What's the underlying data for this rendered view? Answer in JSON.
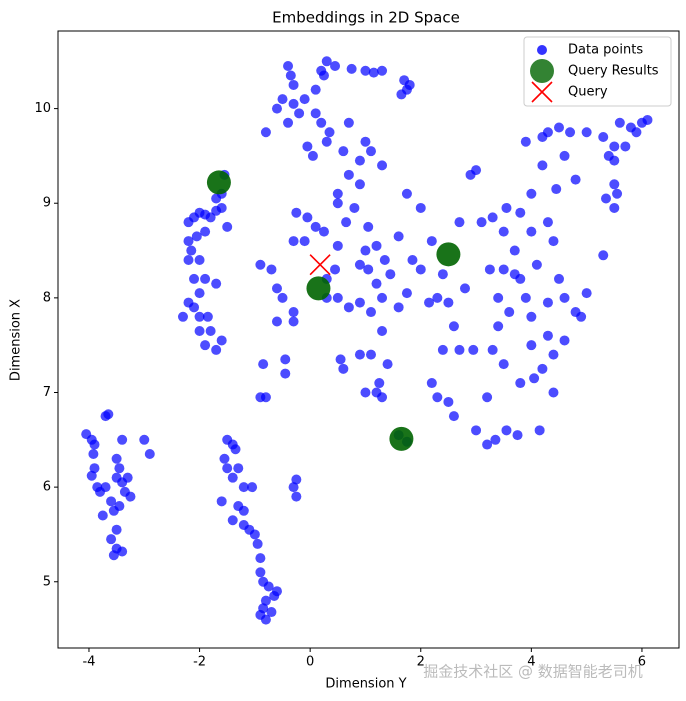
{
  "chart_data": {
    "type": "scatter",
    "title": "Embeddings in 2D Space",
    "xlabel": "Dimension Y",
    "ylabel": "Dimension X",
    "xlim": [
      -4.56,
      6.67
    ],
    "ylim": [
      4.3,
      10.82
    ],
    "xticks": [
      -4,
      -2,
      0,
      2,
      4,
      6
    ],
    "yticks": [
      5,
      6,
      7,
      8,
      9,
      10
    ],
    "legend": "upper right",
    "series": [
      {
        "name": "Data points",
        "color": "#0000ff",
        "marker": "o",
        "x": [
          -4.05,
          -3.95,
          -3.9,
          -3.92,
          -3.9,
          -3.85,
          -3.95,
          -3.7,
          -3.65,
          -3.7,
          -3.5,
          -3.4,
          -3.45,
          -3.4,
          -3.5,
          -3.3,
          -3.25,
          -3.6,
          -3.55,
          -3.75,
          -3.5,
          -3.6,
          -3.5,
          -3.55,
          -3.4,
          -3.0,
          -2.9,
          -3.35,
          -3.8,
          -3.45,
          -2.2,
          -2.1,
          -2.0,
          -1.9,
          -1.8,
          -1.7,
          -1.6,
          -1.7,
          -1.5,
          -2.2,
          -2.15,
          -2.2,
          -2.0,
          -2.1,
          -2.0,
          -1.9,
          -1.7,
          -2.2,
          -2.1,
          -2.3,
          -2.0,
          -1.85,
          -1.8,
          -2.0,
          -1.9,
          -1.7,
          -1.6,
          -1.6,
          -1.55,
          -1.9,
          -2.05,
          -1.5,
          -1.4,
          -1.55,
          -1.5,
          -1.4,
          -1.3,
          -1.35,
          -1.2,
          -1.6,
          -1.3,
          -1.2,
          -1.4,
          -1.2,
          -1.1,
          -1.0,
          -0.95,
          -0.9,
          -0.9,
          -0.85,
          -0.75,
          -0.8,
          -0.85,
          -0.9,
          -0.8,
          -0.7,
          -0.65,
          -0.6,
          -1.05,
          -0.3,
          -0.25,
          -0.25,
          -0.4,
          -0.35,
          -0.3,
          -0.5,
          -0.6,
          -0.3,
          -0.2,
          -0.4,
          -0.1,
          0.1,
          0.2,
          0.3,
          0.45,
          0.25,
          0.1,
          0.2,
          0.35,
          -0.05,
          0.05,
          0.3,
          0.75,
          1.0,
          1.15,
          1.3,
          1.7,
          1.75,
          1.65,
          1.8,
          0.7,
          0.6,
          1.0,
          0.9,
          1.1,
          1.3,
          -0.8,
          -0.9,
          -0.7,
          -0.6,
          -0.5,
          -0.3,
          -0.6,
          -0.3,
          -0.45,
          -0.45,
          -0.85,
          -0.9,
          -0.8,
          -0.1,
          -0.05,
          0.1,
          0.25,
          0.5,
          0.3,
          0.45,
          0.5,
          0.7,
          0.9,
          0.55,
          0.6,
          0.9,
          1.1,
          1.25,
          1.0,
          1.3,
          0.3,
          0.5,
          0.65,
          0.8,
          1.05,
          1.0,
          1.2,
          1.35,
          1.05,
          1.2,
          1.45,
          1.3,
          0.9,
          1.1,
          1.3,
          1.6,
          1.75,
          1.85,
          1.6,
          1.75,
          2.0,
          2.2,
          2.0,
          2.3,
          2.5,
          2.15,
          2.4,
          2.8,
          2.6,
          2.7,
          2.4,
          2.2,
          2.3,
          2.5,
          2.6,
          3.0,
          3.2,
          3.35,
          3.2,
          1.6,
          1.75,
          1.2,
          1.4,
          2.7,
          2.9,
          3.0,
          3.1,
          3.3,
          3.5,
          3.25,
          3.5,
          3.7,
          3.4,
          3.6,
          3.3,
          3.5,
          3.55,
          3.8,
          3.75,
          3.4,
          2.95,
          3.7,
          3.55,
          3.8,
          0.7,
          0.5,
          0.9,
          -0.25,
          -0.3,
          3.9,
          4.2,
          4.3,
          4.5,
          4.7,
          5.0,
          5.3,
          5.5,
          5.6,
          5.8,
          6.0,
          6.1,
          5.9,
          5.7,
          5.5,
          5.4,
          5.5,
          5.55,
          5.5,
          5.35,
          4.6,
          4.8,
          4.2,
          4.0,
          4.3,
          4.0,
          4.4,
          4.1,
          4.5,
          4.6,
          4.8,
          5.0,
          4.9,
          5.3,
          4.3,
          4.0,
          4.3,
          4.4,
          4.2,
          4.05,
          4.4,
          4.15,
          4.0,
          4.6,
          3.9,
          3.8,
          4.45
        ],
        "values": [
          6.56,
          6.5,
          6.45,
          6.35,
          6.2,
          6.0,
          6.12,
          6.0,
          6.77,
          6.75,
          6.3,
          6.5,
          6.2,
          6.05,
          6.1,
          6.1,
          5.9,
          5.85,
          5.75,
          5.7,
          5.55,
          5.45,
          5.35,
          5.28,
          5.32,
          6.5,
          6.35,
          5.95,
          5.95,
          5.8,
          8.8,
          8.85,
          8.9,
          8.88,
          8.85,
          9.05,
          8.95,
          8.92,
          8.75,
          8.6,
          8.5,
          8.4,
          8.4,
          8.2,
          8.05,
          8.2,
          8.15,
          7.95,
          7.9,
          7.8,
          7.8,
          7.8,
          7.65,
          7.65,
          7.5,
          7.45,
          7.55,
          9.1,
          9.3,
          8.7,
          8.65,
          6.5,
          6.45,
          6.3,
          6.2,
          6.1,
          6.2,
          6.4,
          6.0,
          5.85,
          5.8,
          5.75,
          5.65,
          5.6,
          5.55,
          5.5,
          5.4,
          5.25,
          5.1,
          5.0,
          4.95,
          4.8,
          4.72,
          4.65,
          4.6,
          4.68,
          4.85,
          4.9,
          6.0,
          6.0,
          6.08,
          5.9,
          10.45,
          10.35,
          10.25,
          10.1,
          10.0,
          10.05,
          9.95,
          9.85,
          10.1,
          10.2,
          10.4,
          10.5,
          10.45,
          10.35,
          9.95,
          9.85,
          9.75,
          9.6,
          9.5,
          9.65,
          10.42,
          10.4,
          10.38,
          10.4,
          10.3,
          10.2,
          10.15,
          10.25,
          9.85,
          9.55,
          9.65,
          9.45,
          9.55,
          9.4,
          9.75,
          8.35,
          8.3,
          8.1,
          8.0,
          7.85,
          7.75,
          7.75,
          7.35,
          7.2,
          7.3,
          6.95,
          6.95,
          8.6,
          8.85,
          8.75,
          8.7,
          8.55,
          8.2,
          8.3,
          8.0,
          7.9,
          7.95,
          7.35,
          7.25,
          7.4,
          7.4,
          7.1,
          7.0,
          6.95,
          8.0,
          9.1,
          8.8,
          8.95,
          8.75,
          8.5,
          8.55,
          8.4,
          8.3,
          8.15,
          8.25,
          8.0,
          8.35,
          7.85,
          7.65,
          7.9,
          8.05,
          8.4,
          8.65,
          9.1,
          8.95,
          8.6,
          8.3,
          8.0,
          7.95,
          7.95,
          8.25,
          8.1,
          7.7,
          7.45,
          7.45,
          7.1,
          6.95,
          6.9,
          6.75,
          6.6,
          6.95,
          6.5,
          6.45,
          6.55,
          6.48,
          7.0,
          7.3,
          8.8,
          9.3,
          9.35,
          8.8,
          8.85,
          8.7,
          8.3,
          8.3,
          8.25,
          8.0,
          7.85,
          7.45,
          7.3,
          6.6,
          7.1,
          6.55,
          7.7,
          7.45,
          8.5,
          8.95,
          8.9,
          9.3,
          9.0,
          9.2,
          8.9,
          8.6,
          9.65,
          9.7,
          9.75,
          9.8,
          9.75,
          9.75,
          9.7,
          9.6,
          9.85,
          9.8,
          9.85,
          9.88,
          9.75,
          9.6,
          9.45,
          9.5,
          9.2,
          9.1,
          8.95,
          9.05,
          9.5,
          9.25,
          9.4,
          9.1,
          8.8,
          8.7,
          8.6,
          8.35,
          8.2,
          8.0,
          7.85,
          8.05,
          7.8,
          8.45,
          7.95,
          7.8,
          7.6,
          7.4,
          7.25,
          7.15,
          7.0,
          6.6,
          7.5,
          7.55,
          8.0,
          8.2,
          9.15
        ]
      },
      {
        "name": "Query Results",
        "color": "#006400",
        "marker": "o",
        "x": [
          -1.65,
          2.5,
          0.15,
          1.65
        ],
        "values": [
          9.22,
          8.46,
          8.1,
          6.51
        ]
      },
      {
        "name": "Query",
        "color": "#ff0000",
        "marker": "x",
        "x": [
          0.18
        ],
        "values": [
          8.35
        ]
      }
    ]
  },
  "watermark": "掘金技术社区 @ 数据智能老司机"
}
